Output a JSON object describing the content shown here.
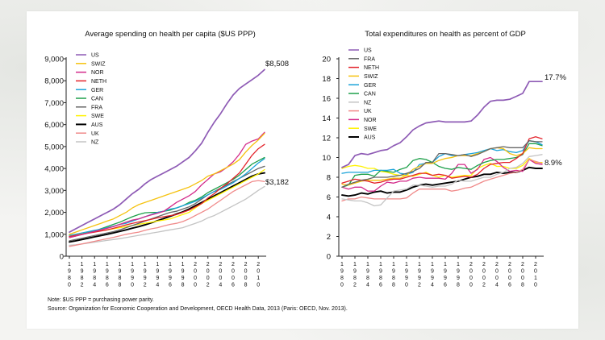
{
  "note": "Note: $US PPP = purchasing power parity.",
  "source": "Source: Organization for Economic Cooperation and Development, OECD Health Data, 2013 (Paris: OECD, Nov. 2013).",
  "colors": {
    "US": "#8e5bb5",
    "SWIZ": "#f5c20f",
    "NOR": "#d32a8a",
    "NETH": "#e3232b",
    "GER": "#1aa3d9",
    "CAN": "#1ea04a",
    "FRA": "#666666",
    "SWE": "#fff200",
    "AUS": "#000000",
    "UK": "#f08a8a",
    "NZ": "#c4c4c4"
  },
  "chart_data": [
    {
      "type": "line",
      "title": "Average spending on health per capita ($US PPP)",
      "xlabel": "",
      "ylabel": "",
      "x": [
        1980,
        1981,
        1982,
        1983,
        1984,
        1985,
        1986,
        1987,
        1988,
        1989,
        1990,
        1991,
        1992,
        1993,
        1994,
        1995,
        1996,
        1997,
        1998,
        1999,
        2000,
        2001,
        2002,
        2003,
        2004,
        2005,
        2006,
        2007,
        2008,
        2009,
        2010,
        2011
      ],
      "x_ticks": [
        1980,
        1982,
        1984,
        1986,
        1988,
        1990,
        1992,
        1994,
        1996,
        1998,
        2000,
        2002,
        2004,
        2006,
        2008,
        2010
      ],
      "x_tick_labels": [
        "1980",
        "1982",
        "1984",
        "1986",
        "1988",
        "1990",
        "1992",
        "1994",
        "1996",
        "1998",
        "2000",
        "2002",
        "2004",
        "2006",
        "2008",
        "2010"
      ],
      "ylim": [
        0,
        9000
      ],
      "y_ticks": [
        0,
        1000,
        2000,
        3000,
        4000,
        5000,
        6000,
        7000,
        8000,
        9000
      ],
      "y_tick_labels": [
        "0",
        "1,000",
        "2,000",
        "3,000",
        "4,000",
        "5,000",
        "6,000",
        "7,000",
        "8,000",
        "9,000"
      ],
      "legend": [
        "US",
        "SWIZ",
        "NOR",
        "NETH",
        "GER",
        "CAN",
        "FRA",
        "SWE",
        "AUS",
        "UK",
        "NZ"
      ],
      "annotations": [
        {
          "text": "$8,508",
          "x": 2011,
          "y": 8508
        },
        {
          "text": "$3,182",
          "x": 2011,
          "y": 3182
        }
      ],
      "series": [
        {
          "name": "US",
          "values": [
            1100,
            1250,
            1400,
            1550,
            1700,
            1850,
            2000,
            2150,
            2350,
            2600,
            2850,
            3050,
            3300,
            3500,
            3650,
            3800,
            3950,
            4100,
            4300,
            4500,
            4800,
            5150,
            5650,
            6100,
            6500,
            6950,
            7350,
            7650,
            7850,
            8050,
            8250,
            8508
          ]
        },
        {
          "name": "SWIZ",
          "values": [
            1000,
            1100,
            1200,
            1300,
            1400,
            1500,
            1600,
            1700,
            1850,
            2000,
            2200,
            2350,
            2450,
            2550,
            2650,
            2750,
            2850,
            2950,
            3050,
            3150,
            3300,
            3450,
            3650,
            3750,
            3900,
            4050,
            4200,
            4400,
            4750,
            5050,
            5300,
            5600
          ]
        },
        {
          "name": "NOR",
          "values": [
            850,
            920,
            990,
            1060,
            1130,
            1200,
            1270,
            1350,
            1450,
            1550,
            1650,
            1700,
            1800,
            1880,
            1960,
            2050,
            2250,
            2450,
            2600,
            2750,
            2950,
            3250,
            3500,
            3750,
            3850,
            4050,
            4300,
            4650,
            5100,
            5250,
            5350,
            5650
          ]
        },
        {
          "name": "NETH",
          "values": [
            900,
            950,
            1000,
            1050,
            1100,
            1150,
            1200,
            1270,
            1350,
            1430,
            1500,
            1560,
            1620,
            1680,
            1750,
            1800,
            1850,
            1900,
            2000,
            2100,
            2250,
            2400,
            2650,
            2850,
            3100,
            3300,
            3550,
            3800,
            4200,
            4600,
            4900,
            5100
          ]
        },
        {
          "name": "GER",
          "values": [
            950,
            1000,
            1060,
            1120,
            1180,
            1230,
            1300,
            1370,
            1450,
            1500,
            1600,
            1700,
            1800,
            1900,
            2000,
            2050,
            2150,
            2200,
            2300,
            2400,
            2500,
            2650,
            2800,
            2950,
            3050,
            3200,
            3350,
            3550,
            3750,
            4000,
            4250,
            4450
          ]
        },
        {
          "name": "CAN",
          "values": [
            850,
            920,
            1000,
            1080,
            1150,
            1250,
            1350,
            1450,
            1550,
            1680,
            1800,
            1900,
            1980,
            2000,
            2000,
            2050,
            2100,
            2200,
            2300,
            2450,
            2550,
            2700,
            2900,
            3050,
            3200,
            3350,
            3500,
            3700,
            3950,
            4200,
            4350,
            4500
          ]
        },
        {
          "name": "FRA",
          "values": [
            700,
            760,
            820,
            880,
            940,
            1000,
            1060,
            1120,
            1200,
            1300,
            1400,
            1500,
            1600,
            1700,
            1800,
            1900,
            2000,
            2050,
            2150,
            2250,
            2400,
            2600,
            2800,
            2950,
            3100,
            3250,
            3400,
            3550,
            3700,
            3850,
            4000,
            4100
          ]
        },
        {
          "name": "SWE",
          "values": [
            950,
            1000,
            1050,
            1100,
            1130,
            1160,
            1200,
            1250,
            1300,
            1350,
            1400,
            1450,
            1500,
            1550,
            1600,
            1650,
            1700,
            1800,
            1900,
            2000,
            2200,
            2400,
            2550,
            2700,
            2850,
            3000,
            3150,
            3300,
            3450,
            3600,
            3750,
            3950
          ]
        },
        {
          "name": "AUS",
          "values": [
            650,
            700,
            760,
            820,
            880,
            940,
            1000,
            1060,
            1130,
            1200,
            1280,
            1350,
            1430,
            1520,
            1620,
            1720,
            1820,
            1920,
            2020,
            2150,
            2300,
            2450,
            2600,
            2750,
            2900,
            3050,
            3200,
            3350,
            3500,
            3650,
            3750,
            3800
          ]
        },
        {
          "name": "UK",
          "values": [
            450,
            500,
            560,
            620,
            680,
            740,
            800,
            860,
            930,
            1000,
            1050,
            1100,
            1180,
            1250,
            1300,
            1380,
            1450,
            1500,
            1580,
            1700,
            1850,
            2000,
            2150,
            2350,
            2550,
            2750,
            2950,
            3100,
            3250,
            3400,
            3450,
            3400
          ]
        },
        {
          "name": "NZ",
          "values": [
            500,
            520,
            560,
            600,
            640,
            680,
            720,
            760,
            800,
            850,
            900,
            950,
            1000,
            1050,
            1100,
            1150,
            1200,
            1250,
            1300,
            1400,
            1500,
            1600,
            1750,
            1850,
            2000,
            2150,
            2300,
            2450,
            2600,
            2800,
            3000,
            3182
          ]
        }
      ]
    },
    {
      "type": "line",
      "title": "Total expenditures on health as percent of GDP",
      "xlabel": "",
      "ylabel": "",
      "x": [
        1980,
        1981,
        1982,
        1983,
        1984,
        1985,
        1986,
        1987,
        1988,
        1989,
        1990,
        1991,
        1992,
        1993,
        1994,
        1995,
        1996,
        1997,
        1998,
        1999,
        2000,
        2001,
        2002,
        2003,
        2004,
        2005,
        2006,
        2007,
        2008,
        2009,
        2010,
        2011
      ],
      "x_ticks": [
        1980,
        1982,
        1984,
        1986,
        1988,
        1990,
        1992,
        1994,
        1996,
        1998,
        2000,
        2002,
        2004,
        2006,
        2008,
        2010
      ],
      "x_tick_labels": [
        "1980",
        "1982",
        "1984",
        "1986",
        "1988",
        "1990",
        "1992",
        "1994",
        "1996",
        "1998",
        "2000",
        "2002",
        "2004",
        "2006",
        "2008",
        "2010"
      ],
      "ylim": [
        0,
        20
      ],
      "y_ticks": [
        0,
        2,
        4,
        6,
        8,
        10,
        12,
        14,
        16,
        18,
        20
      ],
      "y_tick_labels": [
        "0",
        "2",
        "4",
        "6",
        "8",
        "10",
        "12",
        "14",
        "16",
        "18",
        "20"
      ],
      "legend": [
        "US",
        "FRA",
        "NETH",
        "SWIZ",
        "GER",
        "CAN",
        "NZ",
        "UK",
        "NOR",
        "SWE",
        "AUS"
      ],
      "annotations": [
        {
          "text": "17.7%",
          "x": 2011,
          "y": 17.7
        },
        {
          "text": "8.9%",
          "x": 2011,
          "y": 8.9
        }
      ],
      "series": [
        {
          "name": "US",
          "values": [
            9.0,
            9.3,
            10.2,
            10.4,
            10.3,
            10.5,
            10.7,
            10.8,
            11.2,
            11.5,
            12.1,
            12.8,
            13.2,
            13.5,
            13.6,
            13.7,
            13.6,
            13.6,
            13.6,
            13.6,
            13.7,
            14.3,
            15.1,
            15.7,
            15.8,
            15.8,
            15.9,
            16.2,
            16.5,
            17.7,
            17.7,
            17.7
          ]
        },
        {
          "name": "FRA",
          "values": [
            7.0,
            7.3,
            7.5,
            7.7,
            7.8,
            8.0,
            8.0,
            8.0,
            8.1,
            8.2,
            8.4,
            8.6,
            8.9,
            9.5,
            9.5,
            10.4,
            10.4,
            10.3,
            10.2,
            10.3,
            10.1,
            10.3,
            10.6,
            10.9,
            11.0,
            11.1,
            11.0,
            11.0,
            11.0,
            11.7,
            11.6,
            11.6
          ]
        },
        {
          "name": "NETH",
          "values": [
            7.4,
            7.6,
            7.8,
            7.7,
            7.6,
            7.4,
            7.5,
            7.7,
            7.8,
            7.8,
            8.0,
            8.2,
            8.4,
            8.4,
            8.2,
            8.3,
            8.2,
            7.9,
            8.0,
            8.1,
            8.0,
            8.3,
            8.9,
            9.3,
            9.4,
            9.5,
            9.5,
            9.9,
            10.4,
            11.9,
            12.1,
            11.9
          ]
        },
        {
          "name": "SWIZ",
          "values": [
            7.3,
            7.2,
            7.4,
            7.6,
            7.7,
            7.7,
            7.7,
            7.8,
            7.9,
            7.9,
            8.2,
            8.8,
            9.1,
            9.4,
            9.4,
            9.7,
            9.9,
            10.0,
            10.2,
            10.2,
            10.2,
            10.4,
            10.6,
            10.9,
            11.0,
            10.9,
            10.4,
            10.2,
            10.4,
            11.0,
            10.9,
            10.9
          ]
        },
        {
          "name": "GER",
          "values": [
            8.4,
            8.5,
            8.5,
            8.5,
            8.5,
            8.7,
            8.7,
            8.7,
            8.8,
            8.4,
            8.3,
            8.5,
            9.3,
            9.4,
            9.5,
            10.1,
            10.4,
            10.2,
            10.2,
            10.3,
            10.4,
            10.5,
            10.7,
            10.9,
            10.7,
            10.8,
            10.6,
            10.5,
            10.7,
            11.7,
            11.6,
            11.3
          ]
        },
        {
          "name": "CAN",
          "values": [
            7.0,
            7.2,
            8.2,
            8.3,
            8.3,
            8.1,
            8.7,
            8.6,
            8.5,
            8.8,
            9.0,
            9.7,
            9.9,
            9.8,
            9.5,
            9.1,
            8.9,
            8.8,
            9.0,
            8.9,
            8.8,
            9.2,
            9.5,
            9.7,
            9.8,
            9.8,
            9.9,
            10.0,
            10.3,
            11.4,
            11.4,
            11.2
          ]
        },
        {
          "name": "NZ",
          "values": [
            5.8,
            5.7,
            5.6,
            5.6,
            5.4,
            5.1,
            5.2,
            5.9,
            6.6,
            6.7,
            6.8,
            7.2,
            7.2,
            7.1,
            7.0,
            7.1,
            7.1,
            7.3,
            7.7,
            7.6,
            7.6,
            7.8,
            8.0,
            8.0,
            8.3,
            8.5,
            8.9,
            9.0,
            9.4,
            10.1,
            10.2,
            10.3
          ]
        },
        {
          "name": "UK",
          "values": [
            5.6,
            5.8,
            5.8,
            6.0,
            5.9,
            5.8,
            5.8,
            5.8,
            5.8,
            5.8,
            5.9,
            6.4,
            6.8,
            6.8,
            6.8,
            6.8,
            6.8,
            6.6,
            6.7,
            6.9,
            7.0,
            7.3,
            7.6,
            7.8,
            8.0,
            8.2,
            8.4,
            8.5,
            8.8,
            9.8,
            9.6,
            9.4
          ]
        },
        {
          "name": "NOR",
          "values": [
            7.0,
            6.8,
            7.0,
            7.0,
            6.6,
            6.6,
            7.1,
            7.5,
            7.4,
            7.6,
            7.6,
            7.9,
            8.0,
            7.9,
            7.9,
            7.9,
            7.8,
            8.4,
            9.3,
            9.3,
            8.4,
            8.8,
            9.8,
            10.0,
            9.6,
            9.0,
            8.6,
            8.7,
            8.6,
            9.8,
            9.4,
            9.3
          ]
        },
        {
          "name": "SWE",
          "values": [
            8.9,
            9.1,
            9.2,
            9.1,
            8.9,
            8.9,
            8.6,
            8.5,
            8.3,
            8.2,
            8.2,
            8.1,
            8.3,
            8.5,
            8.2,
            8.0,
            8.2,
            8.0,
            8.1,
            8.2,
            8.2,
            8.9,
            9.2,
            9.4,
            9.1,
            9.1,
            8.9,
            8.9,
            9.2,
            9.9,
            9.5,
            9.5
          ]
        },
        {
          "name": "AUS",
          "values": [
            6.2,
            6.1,
            6.2,
            6.4,
            6.3,
            6.5,
            6.6,
            6.4,
            6.5,
            6.5,
            6.7,
            7.0,
            7.2,
            7.3,
            7.2,
            7.3,
            7.4,
            7.5,
            7.6,
            7.8,
            8.0,
            8.1,
            8.3,
            8.3,
            8.5,
            8.4,
            8.5,
            8.5,
            8.7,
            9.0,
            8.9,
            8.9
          ]
        }
      ]
    }
  ]
}
